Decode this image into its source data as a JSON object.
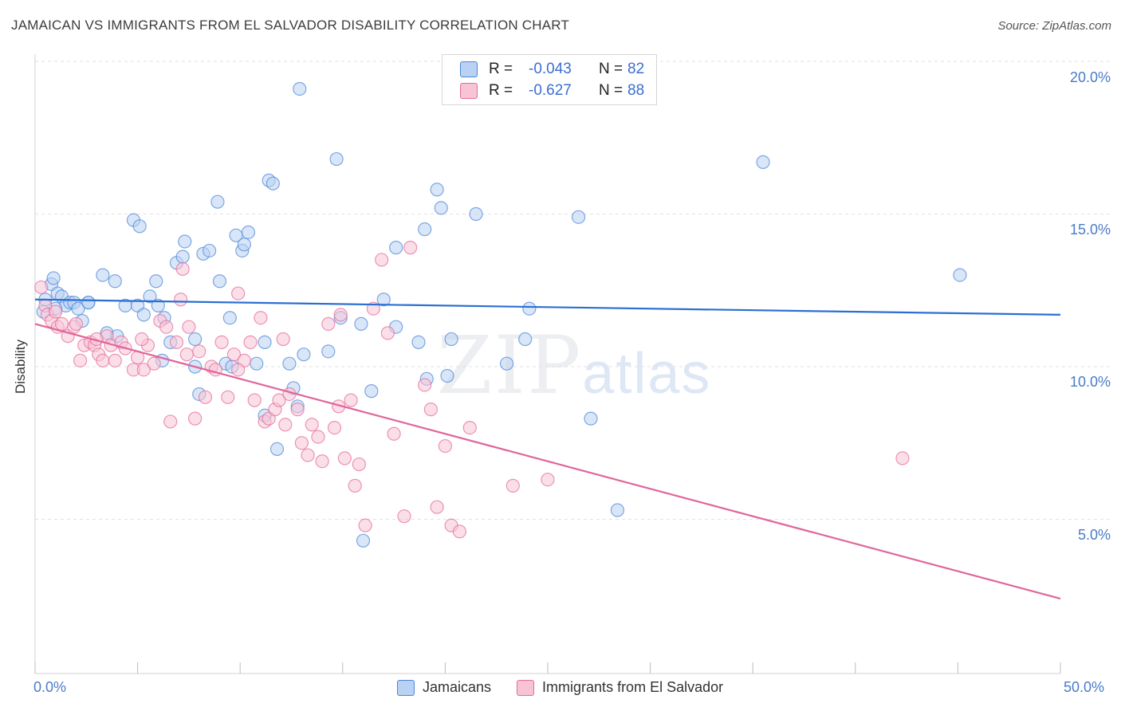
{
  "title": "JAMAICAN VS IMMIGRANTS FROM EL SALVADOR DISABILITY CORRELATION CHART",
  "source": "Source: ZipAtlas.com",
  "watermark": {
    "zip": "ZIP",
    "atlas": "atlas"
  },
  "colors": {
    "blue": "#4a86d8",
    "blue_fill": "#b9d2f3",
    "pink": "#e56a99",
    "pink_fill": "#f7c4d6",
    "grid": "#e2e2e2",
    "tick_label": "#4a7bc8"
  },
  "legend": {
    "rows": [
      {
        "r_label": "R =",
        "r_value": "-0.043",
        "n_label": "N =",
        "n_value": "82"
      },
      {
        "r_label": "R =",
        "r_value": "-0.627",
        "n_label": "N =",
        "n_value": "88"
      }
    ]
  },
  "bottom_legend": [
    "Jamaicans",
    "Immigrants from El Salvador"
  ],
  "chart_data": {
    "type": "scatter",
    "title": "JAMAICAN VS IMMIGRANTS FROM EL SALVADOR DISABILITY CORRELATION CHART",
    "xlabel": "",
    "ylabel": "Disability",
    "xlim": [
      0,
      50
    ],
    "ylim": [
      0,
      21
    ],
    "x_tick_labels": [
      "0.0%",
      "50.0%"
    ],
    "y_ticks": [
      5,
      10,
      15,
      20
    ],
    "y_tick_labels": [
      "5.0%",
      "10.0%",
      "15.0%",
      "20.0%"
    ],
    "grid": true,
    "legend_position": "top-center",
    "series": [
      {
        "name": "Jamaicans",
        "r": -0.043,
        "n": 82,
        "trend": {
          "x": [
            0,
            50
          ],
          "y": [
            12.2,
            11.7
          ]
        },
        "points": [
          [
            0.4,
            11.8
          ],
          [
            0.5,
            12.2
          ],
          [
            0.8,
            12.7
          ],
          [
            0.9,
            12.9
          ],
          [
            1.1,
            12.4
          ],
          [
            1.3,
            12.3
          ],
          [
            1.5,
            12.0
          ],
          [
            1.7,
            12.1
          ],
          [
            1.9,
            12.1
          ],
          [
            2.1,
            11.9
          ],
          [
            2.6,
            12.1
          ],
          [
            2.6,
            12.1
          ],
          [
            2.3,
            11.5
          ],
          [
            3.3,
            13.0
          ],
          [
            3.9,
            12.8
          ],
          [
            4.4,
            12.0
          ],
          [
            4.8,
            14.8
          ],
          [
            5.1,
            14.6
          ],
          [
            5.0,
            12.0
          ],
          [
            5.3,
            11.7
          ],
          [
            5.6,
            12.3
          ],
          [
            5.9,
            12.8
          ],
          [
            6.0,
            12.0
          ],
          [
            6.3,
            11.6
          ],
          [
            6.6,
            10.8
          ],
          [
            6.9,
            13.4
          ],
          [
            7.2,
            13.6
          ],
          [
            7.3,
            14.1
          ],
          [
            7.8,
            10.0
          ],
          [
            7.8,
            10.9
          ],
          [
            8.2,
            13.7
          ],
          [
            8.5,
            13.8
          ],
          [
            8.9,
            15.4
          ],
          [
            9.0,
            12.8
          ],
          [
            9.3,
            10.1
          ],
          [
            9.5,
            11.6
          ],
          [
            9.8,
            14.3
          ],
          [
            10.1,
            13.8
          ],
          [
            10.2,
            14.0
          ],
          [
            10.4,
            14.4
          ],
          [
            10.8,
            10.1
          ],
          [
            11.2,
            10.8
          ],
          [
            11.4,
            16.1
          ],
          [
            11.6,
            16.0
          ],
          [
            11.8,
            7.3
          ],
          [
            11.2,
            8.4
          ],
          [
            12.4,
            10.1
          ],
          [
            12.8,
            8.7
          ],
          [
            12.9,
            19.1
          ],
          [
            13.1,
            10.4
          ],
          [
            14.3,
            10.5
          ],
          [
            14.7,
            16.8
          ],
          [
            14.9,
            11.6
          ],
          [
            15.9,
            11.4
          ],
          [
            16.0,
            4.3
          ],
          [
            16.4,
            9.2
          ],
          [
            17.0,
            12.2
          ],
          [
            17.6,
            11.3
          ],
          [
            17.6,
            13.9
          ],
          [
            18.7,
            10.8
          ],
          [
            19.1,
            9.6
          ],
          [
            19.0,
            14.5
          ],
          [
            19.6,
            15.8
          ],
          [
            19.8,
            15.2
          ],
          [
            20.1,
            9.7
          ],
          [
            20.3,
            10.9
          ],
          [
            21.5,
            15.0
          ],
          [
            23.0,
            10.1
          ],
          [
            23.9,
            10.9
          ],
          [
            24.1,
            11.9
          ],
          [
            26.5,
            14.9
          ],
          [
            27.1,
            8.3
          ],
          [
            28.4,
            5.3
          ],
          [
            35.5,
            16.7
          ],
          [
            45.1,
            13.0
          ],
          [
            1.0,
            11.9
          ],
          [
            3.5,
            11.1
          ],
          [
            4.0,
            11.0
          ],
          [
            6.2,
            10.2
          ],
          [
            8.0,
            9.1
          ],
          [
            9.6,
            10.0
          ],
          [
            12.6,
            9.3
          ]
        ]
      },
      {
        "name": "Immigrants from El Salvador",
        "r": -0.627,
        "n": 88,
        "trend": {
          "x": [
            0,
            50
          ],
          "y": [
            11.4,
            2.4
          ]
        },
        "points": [
          [
            0.3,
            12.6
          ],
          [
            0.5,
            12.0
          ],
          [
            0.6,
            11.7
          ],
          [
            0.8,
            11.5
          ],
          [
            1.0,
            11.8
          ],
          [
            1.1,
            11.3
          ],
          [
            1.3,
            11.4
          ],
          [
            1.6,
            11.0
          ],
          [
            1.9,
            11.3
          ],
          [
            2.0,
            11.4
          ],
          [
            2.2,
            10.2
          ],
          [
            2.4,
            10.7
          ],
          [
            2.7,
            10.8
          ],
          [
            2.9,
            10.7
          ],
          [
            3.1,
            10.4
          ],
          [
            3.3,
            10.2
          ],
          [
            3.5,
            11.0
          ],
          [
            3.7,
            10.7
          ],
          [
            3.9,
            10.2
          ],
          [
            4.2,
            10.8
          ],
          [
            4.4,
            10.6
          ],
          [
            4.8,
            9.9
          ],
          [
            5.0,
            10.3
          ],
          [
            5.3,
            9.9
          ],
          [
            5.5,
            10.7
          ],
          [
            5.8,
            10.1
          ],
          [
            6.1,
            11.5
          ],
          [
            6.4,
            11.3
          ],
          [
            6.6,
            8.2
          ],
          [
            6.9,
            10.8
          ],
          [
            7.1,
            12.2
          ],
          [
            7.4,
            10.4
          ],
          [
            7.5,
            11.3
          ],
          [
            7.8,
            8.3
          ],
          [
            8.0,
            10.5
          ],
          [
            8.3,
            9.0
          ],
          [
            8.6,
            10.0
          ],
          [
            8.8,
            9.9
          ],
          [
            9.1,
            10.8
          ],
          [
            9.4,
            9.0
          ],
          [
            9.7,
            10.4
          ],
          [
            9.9,
            12.4
          ],
          [
            10.2,
            10.2
          ],
          [
            10.5,
            10.8
          ],
          [
            10.7,
            8.9
          ],
          [
            11.0,
            11.6
          ],
          [
            11.2,
            8.2
          ],
          [
            11.4,
            8.3
          ],
          [
            11.7,
            8.6
          ],
          [
            11.9,
            8.9
          ],
          [
            12.2,
            8.1
          ],
          [
            12.4,
            9.1
          ],
          [
            12.8,
            8.6
          ],
          [
            13.0,
            7.5
          ],
          [
            13.3,
            7.1
          ],
          [
            13.5,
            8.1
          ],
          [
            13.8,
            7.7
          ],
          [
            14.0,
            6.9
          ],
          [
            14.3,
            11.4
          ],
          [
            14.6,
            8.0
          ],
          [
            14.9,
            11.7
          ],
          [
            15.1,
            7.0
          ],
          [
            15.4,
            8.9
          ],
          [
            15.6,
            6.1
          ],
          [
            15.8,
            6.8
          ],
          [
            16.1,
            4.8
          ],
          [
            16.5,
            11.9
          ],
          [
            16.9,
            13.5
          ],
          [
            17.2,
            11.1
          ],
          [
            17.5,
            7.8
          ],
          [
            18.0,
            5.1
          ],
          [
            18.3,
            13.9
          ],
          [
            19.0,
            9.4
          ],
          [
            19.3,
            8.6
          ],
          [
            19.6,
            5.4
          ],
          [
            20.0,
            7.4
          ],
          [
            20.3,
            4.8
          ],
          [
            20.7,
            4.6
          ],
          [
            21.2,
            8.0
          ],
          [
            23.3,
            6.1
          ],
          [
            25.0,
            6.3
          ],
          [
            42.3,
            7.0
          ],
          [
            7.2,
            13.2
          ],
          [
            5.2,
            10.9
          ],
          [
            3.0,
            10.9
          ],
          [
            12.1,
            10.9
          ],
          [
            9.9,
            9.9
          ],
          [
            14.8,
            8.7
          ]
        ]
      }
    ]
  }
}
